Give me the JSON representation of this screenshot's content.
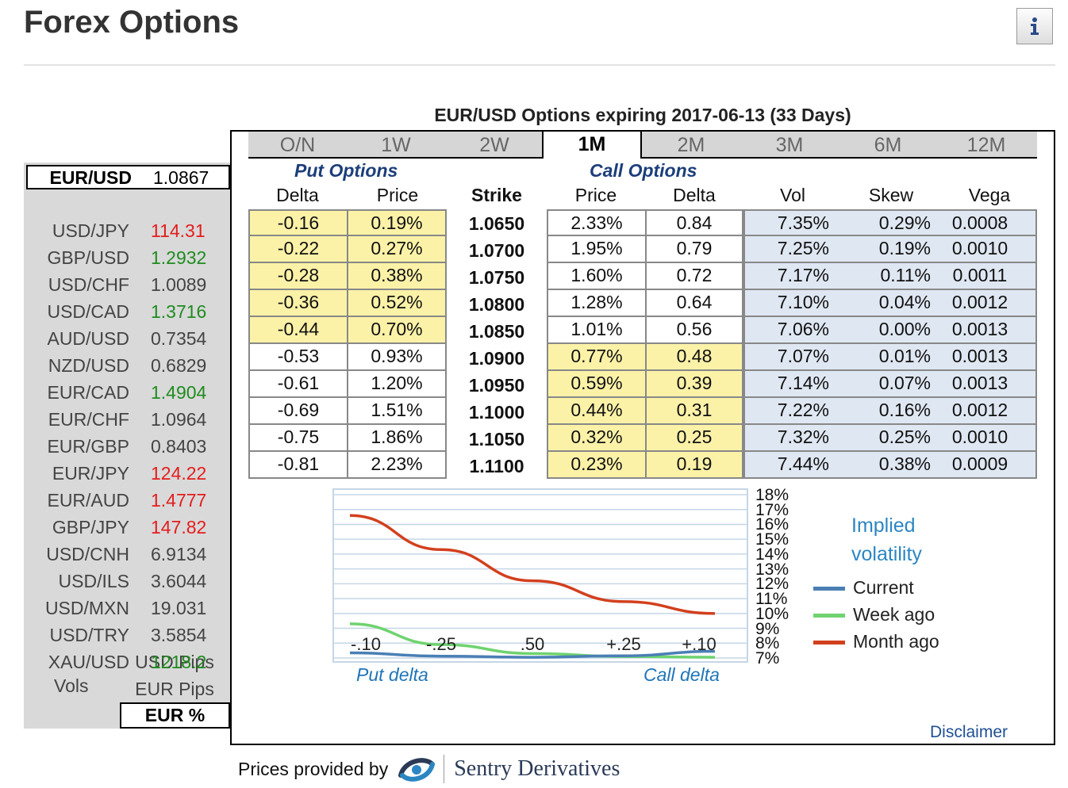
{
  "page_title": "Forex Options",
  "info_button": {
    "icon": "info-icon"
  },
  "sidebar": {
    "pairs": [
      {
        "symbol": "EUR/USD",
        "price": "1.0867",
        "trend": "neutral",
        "active": true
      },
      {
        "symbol": "USD/JPY",
        "price": "114.31",
        "trend": "down"
      },
      {
        "symbol": "GBP/USD",
        "price": "1.2932",
        "trend": "up"
      },
      {
        "symbol": "USD/CHF",
        "price": "1.0089",
        "trend": "neutral"
      },
      {
        "symbol": "USD/CAD",
        "price": "1.3716",
        "trend": "up"
      },
      {
        "symbol": "AUD/USD",
        "price": "0.7354",
        "trend": "neutral"
      },
      {
        "symbol": "NZD/USD",
        "price": "0.6829",
        "trend": "neutral"
      },
      {
        "symbol": "EUR/CAD",
        "price": "1.4904",
        "trend": "up"
      },
      {
        "symbol": "EUR/CHF",
        "price": "1.0964",
        "trend": "neutral"
      },
      {
        "symbol": "EUR/GBP",
        "price": "0.8403",
        "trend": "neutral"
      },
      {
        "symbol": "EUR/JPY",
        "price": "124.22",
        "trend": "down"
      },
      {
        "symbol": "EUR/AUD",
        "price": "1.4777",
        "trend": "down"
      },
      {
        "symbol": "GBP/JPY",
        "price": "147.82",
        "trend": "down"
      },
      {
        "symbol": "USD/CNH",
        "price": "6.9134",
        "trend": "neutral"
      },
      {
        "symbol": "USD/ILS",
        "price": "3.6044",
        "trend": "neutral"
      },
      {
        "symbol": "USD/MXN",
        "price": "19.031",
        "trend": "neutral"
      },
      {
        "symbol": "USD/TRY",
        "price": "3.5854",
        "trend": "neutral"
      },
      {
        "symbol": "XAU/USD",
        "price": "1218.2",
        "trend": "up"
      }
    ],
    "vols_label": "Vols",
    "vol_options": [
      "USD Pips",
      "EUR Pips",
      "EUR %"
    ],
    "vol_selected": "EUR %"
  },
  "options_title": "EUR/USD Options expiring 2017-06-13 (33 Days)",
  "tabs": [
    "O/N",
    "1W",
    "2W",
    "1M",
    "2M",
    "3M",
    "6M",
    "12M"
  ],
  "tab_selected": "1M",
  "table": {
    "put_heading": "Put Options",
    "call_heading": "Call Options",
    "columns": [
      "Delta",
      "Price",
      "Strike",
      "Price",
      "Delta",
      "Vol",
      "Skew",
      "Vega"
    ],
    "rows": [
      {
        "put_delta": "-0.16",
        "put_price": "0.19%",
        "strike": "1.0650",
        "call_price": "2.33%",
        "call_delta": "0.84",
        "vol": "7.35%",
        "skew": "0.29%",
        "vega": "0.0008"
      },
      {
        "put_delta": "-0.22",
        "put_price": "0.27%",
        "strike": "1.0700",
        "call_price": "1.95%",
        "call_delta": "0.79",
        "vol": "7.25%",
        "skew": "0.19%",
        "vega": "0.0010"
      },
      {
        "put_delta": "-0.28",
        "put_price": "0.38%",
        "strike": "1.0750",
        "call_price": "1.60%",
        "call_delta": "0.72",
        "vol": "7.17%",
        "skew": "0.11%",
        "vega": "0.0011"
      },
      {
        "put_delta": "-0.36",
        "put_price": "0.52%",
        "strike": "1.0800",
        "call_price": "1.28%",
        "call_delta": "0.64",
        "vol": "7.10%",
        "skew": "0.04%",
        "vega": "0.0012"
      },
      {
        "put_delta": "-0.44",
        "put_price": "0.70%",
        "strike": "1.0850",
        "call_price": "1.01%",
        "call_delta": "0.56",
        "vol": "7.06%",
        "skew": "0.00%",
        "vega": "0.0013"
      },
      {
        "put_delta": "-0.53",
        "put_price": "0.93%",
        "strike": "1.0900",
        "call_price": "0.77%",
        "call_delta": "0.48",
        "vol": "7.07%",
        "skew": "0.01%",
        "vega": "0.0013"
      },
      {
        "put_delta": "-0.61",
        "put_price": "1.20%",
        "strike": "1.0950",
        "call_price": "0.59%",
        "call_delta": "0.39",
        "vol": "7.14%",
        "skew": "0.07%",
        "vega": "0.0013"
      },
      {
        "put_delta": "-0.69",
        "put_price": "1.51%",
        "strike": "1.1000",
        "call_price": "0.44%",
        "call_delta": "0.31",
        "vol": "7.22%",
        "skew": "0.16%",
        "vega": "0.0012"
      },
      {
        "put_delta": "-0.75",
        "put_price": "1.86%",
        "strike": "1.1050",
        "call_price": "0.32%",
        "call_delta": "0.25",
        "vol": "7.32%",
        "skew": "0.25%",
        "vega": "0.0010"
      },
      {
        "put_delta": "-0.81",
        "put_price": "2.23%",
        "strike": "1.1100",
        "call_price": "0.23%",
        "call_delta": "0.19",
        "vol": "7.44%",
        "skew": "0.38%",
        "vega": "0.0009"
      }
    ]
  },
  "chart": {
    "legend_title_line1": "Implied",
    "legend_title_line2": "volatility",
    "x_left_label": "Put delta",
    "x_right_label": "Call delta",
    "colors": {
      "Current": "#4a7fb5",
      "Week ago": "#6fd36f",
      "Month ago": "#d2401e"
    }
  },
  "chart_data": {
    "type": "line",
    "categories": [
      "-.10",
      "-.25",
      ".50",
      "+.25",
      "+.10"
    ],
    "y_tick_labels": [
      "18%",
      "17%",
      "16%",
      "15%",
      "14%",
      "13%",
      "12%",
      "11%",
      "10%",
      "9%",
      "8%",
      "7%"
    ],
    "ylim": [
      7,
      18
    ],
    "grid": true,
    "legend_placement": "right",
    "series": [
      {
        "name": "Current",
        "values": [
          7.35,
          7.12,
          7.05,
          7.15,
          7.45
        ]
      },
      {
        "name": "Week ago",
        "values": [
          9.3,
          7.9,
          7.3,
          7.1,
          7.05
        ]
      },
      {
        "name": "Month ago",
        "values": [
          16.6,
          14.3,
          12.2,
          10.8,
          10.0
        ]
      }
    ]
  },
  "disclaimer": "Disclaimer",
  "footer": {
    "prefix": "Prices provided by",
    "brand": "Sentry Derivatives"
  }
}
